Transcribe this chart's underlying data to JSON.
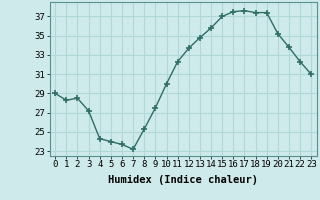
{
  "x": [
    0,
    1,
    2,
    3,
    4,
    5,
    6,
    7,
    8,
    9,
    10,
    11,
    12,
    13,
    14,
    15,
    16,
    17,
    18,
    19,
    20,
    21,
    22,
    23
  ],
  "y": [
    29,
    28.3,
    28.5,
    27.2,
    24.3,
    24.0,
    23.7,
    23.2,
    25.3,
    27.5,
    30.0,
    32.3,
    33.7,
    34.8,
    35.8,
    37.0,
    37.5,
    37.6,
    37.4,
    37.4,
    35.2,
    33.8,
    32.3,
    31.0
  ],
  "line_color": "#2e6e65",
  "marker": "+",
  "markersize": 4,
  "linewidth": 1.0,
  "bg_color": "#ceeaea",
  "grid_color": "#b0d8d8",
  "xlabel": "Humidex (Indice chaleur)",
  "xlim": [
    -0.5,
    23.5
  ],
  "ylim": [
    22.5,
    38.5
  ],
  "yticks": [
    23,
    25,
    27,
    29,
    31,
    33,
    35,
    37
  ],
  "xticks": [
    0,
    1,
    2,
    3,
    4,
    5,
    6,
    7,
    8,
    9,
    10,
    11,
    12,
    13,
    14,
    15,
    16,
    17,
    18,
    19,
    20,
    21,
    22,
    23
  ],
  "xlabel_fontsize": 7.5,
  "tick_fontsize": 6.5
}
